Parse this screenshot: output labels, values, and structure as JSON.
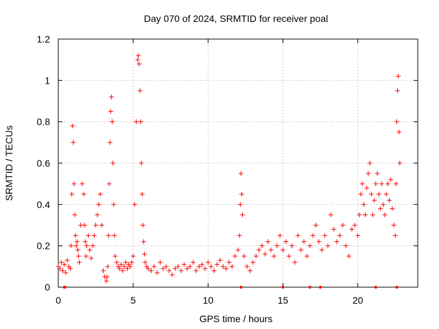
{
  "chart_data": {
    "type": "scatter",
    "title": "Day 070 of 2024, SRMTID for receiver poal",
    "xlabel": "GPS time / hours",
    "ylabel": "SRMTID / TECUs",
    "xlim": [
      0,
      24
    ],
    "ylim": [
      0,
      1.2
    ],
    "xticks": [
      0,
      5,
      10,
      15,
      20
    ],
    "xtick_labels": [
      "0",
      "5",
      "10",
      "15",
      "20"
    ],
    "yticks": [
      0,
      0.2,
      0.4,
      0.6,
      0.8,
      1.0,
      1.2
    ],
    "ytick_labels": [
      "0",
      "0.2",
      "0.4",
      "0.6",
      "0.8",
      "1",
      "1.2"
    ],
    "grid": true,
    "marker": "+",
    "color": "#ff0000",
    "series": [
      {
        "name": "SRMTID",
        "x": [
          0.0,
          0.1,
          0.2,
          0.3,
          0.4,
          0.5,
          0.6,
          0.7,
          0.8,
          0.85,
          0.9,
          0.95,
          1.0,
          1.05,
          1.1,
          1.15,
          1.2,
          1.25,
          1.3,
          1.35,
          1.4,
          1.5,
          1.6,
          1.7,
          1.75,
          1.8,
          1.85,
          1.9,
          2.0,
          2.1,
          2.2,
          2.3,
          2.4,
          2.5,
          2.6,
          2.7,
          2.8,
          2.9,
          3.0,
          3.1,
          3.2,
          3.25,
          3.3,
          3.35,
          3.4,
          3.45,
          3.5,
          3.55,
          3.6,
          3.65,
          3.7,
          3.75,
          3.8,
          3.9,
          4.0,
          4.1,
          4.2,
          4.3,
          4.4,
          4.5,
          4.6,
          4.7,
          4.8,
          4.9,
          5.0,
          5.1,
          5.2,
          5.3,
          5.35,
          5.4,
          5.45,
          5.5,
          5.55,
          5.6,
          5.65,
          5.7,
          5.75,
          5.8,
          5.9,
          6.0,
          6.2,
          6.4,
          6.6,
          6.8,
          7.0,
          7.2,
          7.4,
          7.6,
          7.8,
          8.0,
          8.2,
          8.4,
          8.6,
          8.8,
          9.0,
          9.2,
          9.4,
          9.6,
          9.8,
          10.0,
          10.2,
          10.4,
          10.6,
          10.8,
          11.0,
          11.2,
          11.4,
          11.6,
          11.8,
          12.0,
          12.1,
          12.15,
          12.2,
          12.25,
          12.3,
          12.4,
          12.6,
          12.8,
          13.0,
          13.2,
          13.4,
          13.6,
          13.8,
          14.0,
          14.2,
          14.4,
          14.6,
          14.8,
          15.0,
          15.2,
          15.4,
          15.6,
          15.8,
          16.0,
          16.2,
          16.4,
          16.6,
          16.8,
          17.0,
          17.2,
          17.4,
          17.6,
          17.8,
          18.0,
          18.2,
          18.4,
          18.6,
          18.8,
          19.0,
          19.2,
          19.4,
          19.6,
          19.8,
          20.0,
          20.1,
          20.2,
          20.3,
          20.4,
          20.5,
          20.6,
          20.7,
          20.8,
          20.9,
          21.0,
          21.1,
          21.2,
          21.3,
          21.4,
          21.5,
          21.6,
          21.7,
          21.8,
          21.9,
          22.0,
          22.1,
          22.2,
          22.3,
          22.4,
          22.5,
          22.55,
          22.6,
          22.65,
          22.7,
          22.75,
          22.8
        ],
        "y": [
          0.1,
          0.09,
          0.12,
          0.08,
          0.11,
          0.07,
          0.13,
          0.1,
          0.09,
          0.2,
          0.45,
          0.78,
          0.7,
          0.5,
          0.35,
          0.25,
          0.2,
          0.22,
          0.18,
          0.15,
          0.12,
          0.3,
          0.5,
          0.45,
          0.3,
          0.22,
          0.15,
          0.2,
          0.25,
          0.18,
          0.14,
          0.2,
          0.25,
          0.3,
          0.35,
          0.4,
          0.45,
          0.3,
          0.08,
          0.05,
          0.03,
          0.05,
          0.1,
          0.25,
          0.5,
          0.7,
          0.85,
          0.92,
          0.8,
          0.6,
          0.4,
          0.25,
          0.15,
          0.12,
          0.1,
          0.09,
          0.11,
          0.08,
          0.1,
          0.12,
          0.09,
          0.11,
          0.1,
          0.12,
          0.15,
          0.4,
          0.8,
          1.1,
          1.12,
          1.08,
          0.95,
          0.8,
          0.6,
          0.45,
          0.3,
          0.22,
          0.16,
          0.12,
          0.1,
          0.09,
          0.08,
          0.1,
          0.07,
          0.12,
          0.09,
          0.1,
          0.08,
          0.06,
          0.09,
          0.1,
          0.08,
          0.11,
          0.09,
          0.1,
          0.12,
          0.08,
          0.1,
          0.11,
          0.09,
          0.12,
          0.1,
          0.08,
          0.11,
          0.13,
          0.1,
          0.09,
          0.12,
          0.1,
          0.15,
          0.18,
          0.25,
          0.4,
          0.55,
          0.45,
          0.35,
          0.15,
          0.1,
          0.08,
          0.12,
          0.15,
          0.18,
          0.2,
          0.16,
          0.22,
          0.18,
          0.15,
          0.2,
          0.25,
          0.18,
          0.22,
          0.15,
          0.2,
          0.12,
          0.25,
          0.18,
          0.22,
          0.15,
          0.2,
          0.25,
          0.3,
          0.22,
          0.18,
          0.25,
          0.2,
          0.35,
          0.28,
          0.22,
          0.25,
          0.3,
          0.2,
          0.15,
          0.28,
          0.3,
          0.25,
          0.35,
          0.45,
          0.5,
          0.4,
          0.35,
          0.48,
          0.55,
          0.6,
          0.45,
          0.35,
          0.42,
          0.5,
          0.55,
          0.45,
          0.38,
          0.5,
          0.4,
          0.35,
          0.45,
          0.5,
          0.42,
          0.52,
          0.38,
          0.3,
          0.25,
          0.5,
          0.8,
          0.95,
          1.02,
          0.75,
          0.6
        ],
        "zero_x": [
          0.4,
          0.45,
          12.2,
          15.0,
          16.8,
          17.5,
          21.2,
          22.6
        ]
      }
    ]
  }
}
